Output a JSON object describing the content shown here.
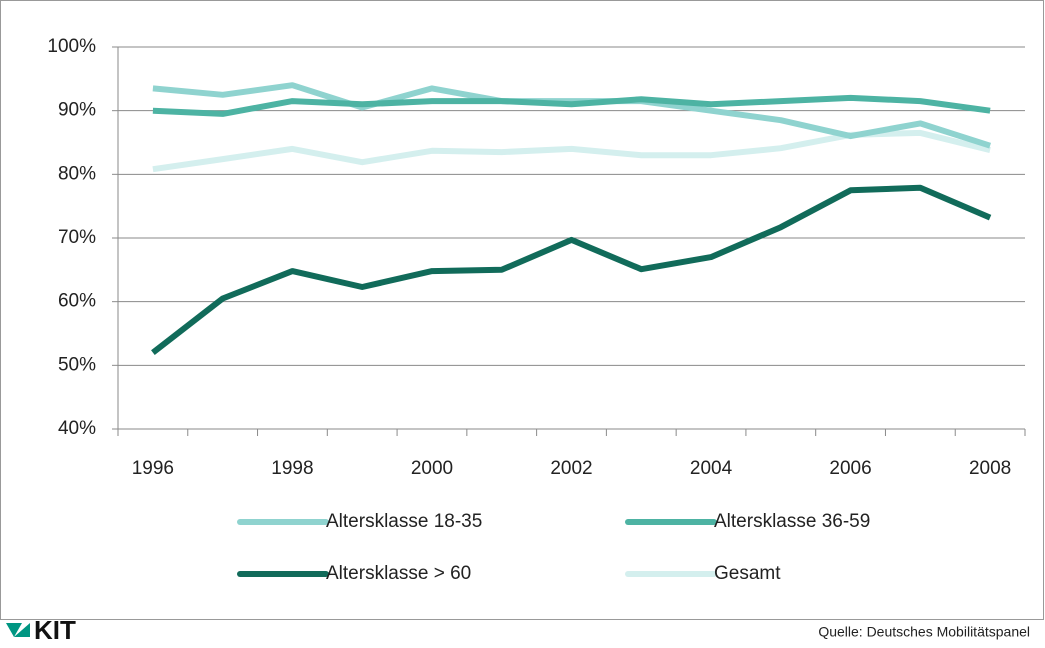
{
  "chart_data": {
    "type": "line",
    "categories": [
      "1996",
      null,
      "1998",
      null,
      "2000",
      null,
      "2002",
      null,
      "2004",
      null,
      "2006",
      null,
      "2008"
    ],
    "series": [
      {
        "name": "Altersklasse 18-35",
        "color": "#8fd3cf",
        "values": [
          93.5,
          92.5,
          94,
          90.5,
          93.5,
          91.5,
          91.5,
          91.5,
          90,
          88.5,
          86,
          88,
          84.5
        ]
      },
      {
        "name": "Altersklasse 36-59",
        "color": "#4db3a3",
        "values": [
          90,
          89.5,
          91.5,
          91,
          91.5,
          91.5,
          91,
          91.8,
          91,
          91.5,
          92,
          91.5,
          90
        ]
      },
      {
        "name": "Altersklasse > 60",
        "color": "#116b5a",
        "values": [
          52,
          60.5,
          64.8,
          62.3,
          64.8,
          65,
          69.7,
          65.1,
          67,
          71.7,
          77.5,
          77.9,
          73.2
        ]
      },
      {
        "name": "Gesamt",
        "color": "#d4efee",
        "values": [
          80.8,
          82.4,
          84,
          81.9,
          83.7,
          83.5,
          84,
          83,
          83,
          84.1,
          86.2,
          86.5,
          83.8
        ]
      }
    ],
    "ylim": [
      40,
      100
    ],
    "yticks": [
      {
        "value": 40,
        "label": "40%"
      },
      {
        "value": 50,
        "label": "50%"
      },
      {
        "value": 60,
        "label": "60%"
      },
      {
        "value": 70,
        "label": "70%"
      },
      {
        "value": 80,
        "label": "80%"
      },
      {
        "value": 90,
        "label": "90%"
      },
      {
        "value": 100,
        "label": "100%"
      }
    ],
    "grid": true,
    "legend": "bottom",
    "source": "Quelle: Deutsches Mobilitätspanel",
    "logo": "KIT"
  }
}
